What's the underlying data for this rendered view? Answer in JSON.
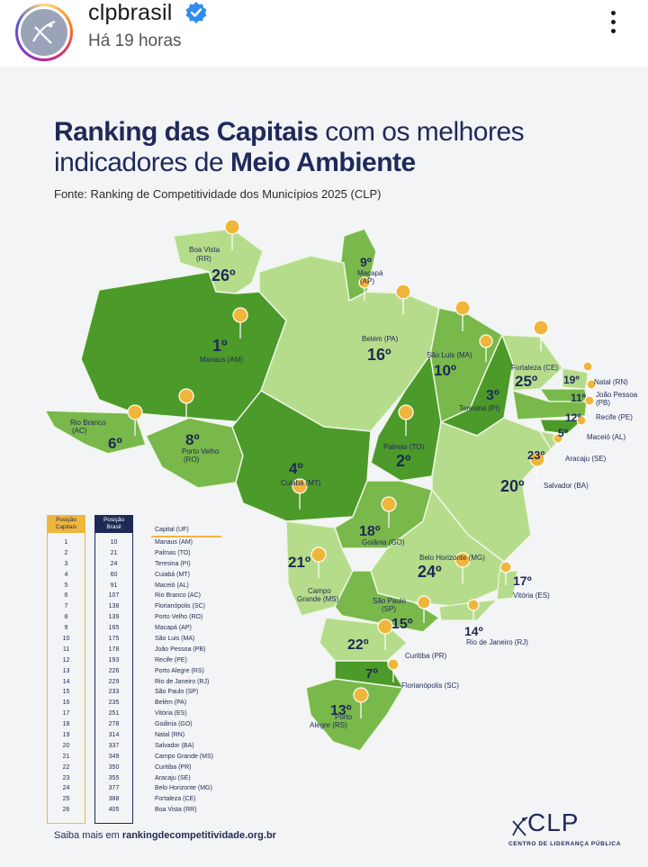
{
  "post": {
    "username": "clpbrasil",
    "timestamp": "Há 19 horas",
    "icons": {
      "verified": "verified-badge-icon",
      "more": "more-options-icon"
    }
  },
  "infographic": {
    "title_bold_1": "Ranking das Capitais",
    "title_regular_1": " com os melhores",
    "title_regular_2": "indicadores de ",
    "title_bold_2": "Meio Ambiente",
    "source": "Fonte: Ranking de Competitividade dos Municípios 2025 (CLP)",
    "colors": {
      "navy": "#1e2a55",
      "gold": "#f0b63c",
      "dark_green": "#4c9a2a",
      "mid_green": "#79b84a",
      "light_green": "#b5dc8a"
    },
    "map_labels": [
      {
        "id": "rr",
        "name": "Boa Vista",
        "uf": "(RR)",
        "rank": "26º"
      },
      {
        "id": "ap",
        "name": "Macapá",
        "uf": "(AP)",
        "rank": "9º"
      },
      {
        "id": "am",
        "name": "Manaus (AM)",
        "uf": "",
        "rank": "1º"
      },
      {
        "id": "pa",
        "name": "Belém (PA)",
        "uf": "",
        "rank": "16º"
      },
      {
        "id": "ma",
        "name": "São Luis (MA)",
        "uf": "",
        "rank": "10º"
      },
      {
        "id": "ce",
        "name": "Fortaleza (CE)",
        "uf": "",
        "rank": "25º"
      },
      {
        "id": "rn",
        "name": "Natal (RN)",
        "uf": "",
        "rank": "19º"
      },
      {
        "id": "pb",
        "name": "João Pessoa",
        "uf": "(PB)",
        "rank": "11º"
      },
      {
        "id": "pe",
        "name": "Recife (PE)",
        "uf": "",
        "rank": "12º"
      },
      {
        "id": "al",
        "name": "Maceió (AL)",
        "uf": "",
        "rank": "5º"
      },
      {
        "id": "se",
        "name": "Aracaju (SE)",
        "uf": "",
        "rank": "23º"
      },
      {
        "id": "pi",
        "name": "Teresina (PI)",
        "uf": "",
        "rank": "3º"
      },
      {
        "id": "ac",
        "name": "Rio Branco",
        "uf": "(AC)",
        "rank": "6º"
      },
      {
        "id": "ro",
        "name": "Porto Velho",
        "uf": "(RO)",
        "rank": "8º"
      },
      {
        "id": "to",
        "name": "Palmas (TO)",
        "uf": "",
        "rank": "2º"
      },
      {
        "id": "mt",
        "name": "Cuiabá (MT)",
        "uf": "",
        "rank": "4º"
      },
      {
        "id": "ba",
        "name": "Salvador (BA)",
        "uf": "",
        "rank": "20º"
      },
      {
        "id": "go",
        "name": "Goiânia (GO)",
        "uf": "",
        "rank": "18º"
      },
      {
        "id": "ms",
        "name": "Campo",
        "uf": "Grande (MS)",
        "rank": "21º"
      },
      {
        "id": "mg",
        "name": "Belo Horizonte (MG)",
        "uf": "",
        "rank": "24º"
      },
      {
        "id": "es",
        "name": "Vitória (ES)",
        "uf": "",
        "rank": "17º"
      },
      {
        "id": "sp",
        "name": "São Paulo",
        "uf": "(SP)",
        "rank": "15º"
      },
      {
        "id": "rj",
        "name": "Rio de Janeiro (RJ)",
        "uf": "",
        "rank": "14º"
      },
      {
        "id": "pr",
        "name": "Curitiba (PR)",
        "uf": "",
        "rank": "22º"
      },
      {
        "id": "sc",
        "name": "Florianópolis (SC)",
        "uf": "",
        "rank": "7º"
      },
      {
        "id": "rs",
        "name": "Porto",
        "uf": "Alegre (RS)",
        "rank": "13º"
      }
    ],
    "table": {
      "header_pos_capitais": [
        "Posição",
        "Capitais"
      ],
      "header_pos_brasil": [
        "Posição",
        "Brasil"
      ],
      "header_capital": "Capital (UF)",
      "rows": [
        [
          "1",
          "10",
          "Manaus (AM)"
        ],
        [
          "2",
          "21",
          "Palmas (TO)"
        ],
        [
          "3",
          "24",
          "Teresina (PI)"
        ],
        [
          "4",
          "60",
          "Cuiabá (MT)"
        ],
        [
          "5",
          "91",
          "Maceió (AL)"
        ],
        [
          "6",
          "107",
          "Rio Branco (AC)"
        ],
        [
          "7",
          "138",
          "Florianópolis (SC)"
        ],
        [
          "8",
          "139",
          "Porto Velho (RO)"
        ],
        [
          "9",
          "165",
          "Macapá (AP)"
        ],
        [
          "10",
          "175",
          "São Luis (MA)"
        ],
        [
          "11",
          "178",
          "João Pessoa (PB)"
        ],
        [
          "12",
          "193",
          "Recife (PE)"
        ],
        [
          "13",
          "226",
          "Porto Alegre (RS)"
        ],
        [
          "14",
          "229",
          "Rio de Janeiro (RJ)"
        ],
        [
          "15",
          "233",
          "São Paulo (SP)"
        ],
        [
          "16",
          "235",
          "Belém (PA)"
        ],
        [
          "17",
          "251",
          "Vitória (ES)"
        ],
        [
          "18",
          "278",
          "Goiânia (GO)"
        ],
        [
          "19",
          "314",
          "Natal (RN)"
        ],
        [
          "20",
          "337",
          "Salvador (BA)"
        ],
        [
          "21",
          "349",
          "Campo Grande (MS)"
        ],
        [
          "22",
          "350",
          "Curitiba (PR)"
        ],
        [
          "23",
          "355",
          "Aracaju (SE)"
        ],
        [
          "24",
          "377",
          "Belo Horizonte (MG)"
        ],
        [
          "25",
          "388",
          "Fortaleza (CE)"
        ],
        [
          "26",
          "405",
          "Boa Vista (RR)"
        ]
      ]
    },
    "footer_prefix": "Saiba mais em ",
    "footer_link": "rankingdecompetitividade.org.br",
    "logo_text": "CLP",
    "logo_subtitle": "CENTRO DE LIDERANÇA PÚBLICA"
  }
}
